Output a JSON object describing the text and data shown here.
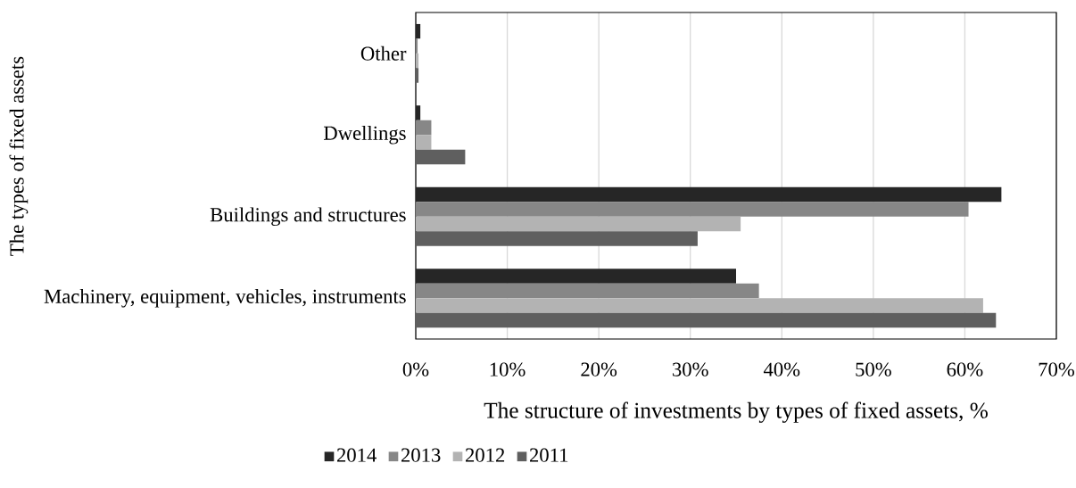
{
  "chart_data": {
    "type": "bar",
    "orientation": "horizontal",
    "xlabel": "The structure of investments by types of fixed assets, %",
    "ylabel": "The types of fixed assets",
    "categories": [
      "Other",
      "Dwellings",
      "Buildings and structures",
      "Machinery, equipment, vehicles, instruments"
    ],
    "series": [
      {
        "name": "2014",
        "color": "#262626",
        "values": [
          0.5,
          0.5,
          64.0,
          35.0
        ]
      },
      {
        "name": "2013",
        "color": "#878787",
        "values": [
          0.2,
          1.7,
          60.4,
          37.5
        ]
      },
      {
        "name": "2012",
        "color": "#b3b3b3",
        "values": [
          0.3,
          1.7,
          35.5,
          62.0
        ]
      },
      {
        "name": "2011",
        "color": "#5f5f5f",
        "values": [
          0.3,
          5.4,
          30.8,
          63.4
        ]
      }
    ],
    "xlim": [
      0,
      70
    ],
    "xticks": [
      {
        "value": 0,
        "label": "0%"
      },
      {
        "value": 10,
        "label": "10%"
      },
      {
        "value": 20,
        "label": "20%"
      },
      {
        "value": 30,
        "label": "30%"
      },
      {
        "value": 40,
        "label": "40%"
      },
      {
        "value": 50,
        "label": "50%"
      },
      {
        "value": 60,
        "label": "60%"
      },
      {
        "value": 70,
        "label": "70%"
      }
    ],
    "grid": "x",
    "legend": "bottom"
  }
}
